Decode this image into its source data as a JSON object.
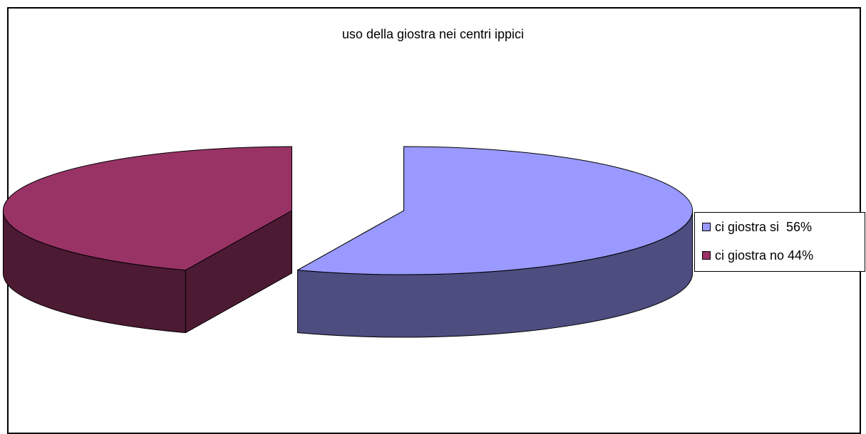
{
  "chart_data": {
    "type": "pie",
    "title": "uso della giostra nei centri ippici",
    "categories": [
      "ci giostra si  56%",
      "ci giostra no 44%"
    ],
    "values": [
      56,
      44
    ],
    "colors": [
      "#9999ff",
      "#993366"
    ],
    "side_colors": [
      "#4d4d80",
      "#4d1a33"
    ],
    "legend_position": "right",
    "style": "3d-exploded"
  }
}
